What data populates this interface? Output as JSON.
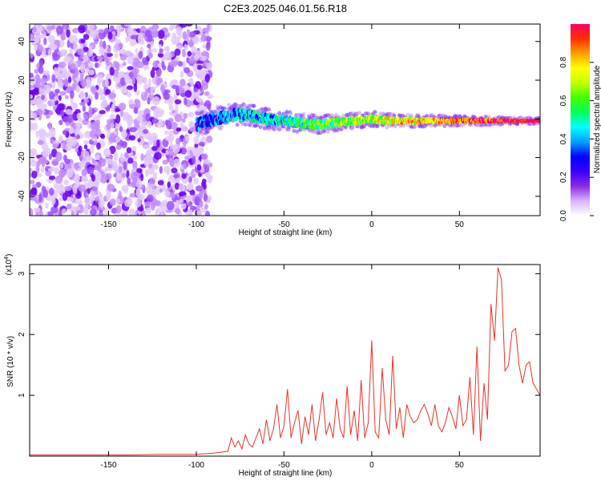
{
  "title": "C2E3.2025.046.01.56.R18",
  "chart_data": [
    {
      "type": "heatmap",
      "xlabel": "Height of straight line (km)",
      "ylabel": "Frequency (Hz)",
      "xlim": [
        -195,
        96
      ],
      "ylim": [
        -50,
        49
      ],
      "xticks": [
        "-150",
        "-100",
        "-50",
        "0",
        "50"
      ],
      "xtick_values": [
        -150,
        -100,
        -50,
        0,
        50
      ],
      "yticks": [
        "40",
        "20",
        "0",
        "-20",
        "-40"
      ],
      "ytick_values": [
        40,
        20,
        0,
        -20,
        -40
      ],
      "grid": false,
      "noise_region_km": [
        -195,
        -92
      ],
      "signal_track": {
        "x": [
          -100,
          -90,
          -80,
          -70,
          -60,
          -50,
          -40,
          -30,
          -20,
          -10,
          0,
          10,
          20,
          30,
          40,
          50,
          60,
          70,
          80,
          90,
          96
        ],
        "y": [
          -3,
          0,
          2,
          2,
          0,
          -1,
          -2,
          -3,
          -2,
          -1,
          0,
          -1,
          -1,
          -1,
          -1,
          -1,
          -1,
          -1,
          -1,
          -1,
          -1
        ]
      },
      "colorbar": {
        "label": "Normalized spectral amplitude",
        "range": [
          0.0,
          1.0
        ],
        "ticks": [
          "0.0",
          "0.2",
          "0.4",
          "0.6",
          "0.8"
        ],
        "tick_values": [
          0.0,
          0.2,
          0.4,
          0.6,
          0.8
        ],
        "colors": [
          "#ffffff",
          "#d9b3ff",
          "#8a2be2",
          "#3a00ff",
          "#0000ff",
          "#00a0ff",
          "#00ffff",
          "#00ff60",
          "#40ff00",
          "#c0ff00",
          "#ffff00",
          "#ffa000",
          "#ff3000",
          "#ff0060"
        ]
      }
    },
    {
      "type": "line",
      "xlabel": "Height of straight line (km)",
      "ylabel": "SNR (10 * v/v)",
      "y_multiplier": "(x10",
      "y_multiplier_exp": "4",
      "y_multiplier_close": ")",
      "xlim": [
        -195,
        96
      ],
      "ylim": [
        0,
        3.15
      ],
      "xticks": [
        "-150",
        "-100",
        "-50",
        "0",
        "50"
      ],
      "xtick_values": [
        -150,
        -100,
        -50,
        0,
        50
      ],
      "yticks": [
        "1",
        "2",
        "3"
      ],
      "ytick_values": [
        1,
        2,
        3
      ],
      "grid": false,
      "color": "#e8312a",
      "x": [
        -195,
        -180,
        -160,
        -140,
        -120,
        -100,
        -90,
        -82,
        -80,
        -78,
        -76,
        -74,
        -72,
        -70,
        -68,
        -66,
        -64,
        -62,
        -60,
        -58,
        -56,
        -54,
        -52,
        -50,
        -48,
        -46,
        -44,
        -42,
        -40,
        -38,
        -36,
        -34,
        -32,
        -30,
        -28,
        -26,
        -24,
        -22,
        -20,
        -18,
        -16,
        -14,
        -12,
        -10,
        -8,
        -6,
        -4,
        -2,
        0,
        2,
        4,
        6,
        8,
        10,
        12,
        14,
        16,
        18,
        20,
        22,
        24,
        26,
        28,
        30,
        32,
        34,
        36,
        38,
        40,
        42,
        44,
        46,
        48,
        50,
        52,
        54,
        56,
        58,
        60,
        62,
        64,
        66,
        68,
        70,
        72,
        74,
        76,
        78,
        80,
        82,
        84,
        86,
        88,
        90,
        92,
        94,
        96
      ],
      "y": [
        0.02,
        0.02,
        0.02,
        0.02,
        0.03,
        0.03,
        0.05,
        0.08,
        0.3,
        0.15,
        0.25,
        0.12,
        0.35,
        0.2,
        0.15,
        0.3,
        0.45,
        0.2,
        0.6,
        0.25,
        0.45,
        0.85,
        0.3,
        0.5,
        1.1,
        0.3,
        0.55,
        0.75,
        0.2,
        0.65,
        0.35,
        0.85,
        0.25,
        0.6,
        1.05,
        0.35,
        0.55,
        0.3,
        0.95,
        0.45,
        0.3,
        1.15,
        0.35,
        0.75,
        0.25,
        1.25,
        0.3,
        0.55,
        1.9,
        0.4,
        0.3,
        1.45,
        0.6,
        0.35,
        1.65,
        0.45,
        0.8,
        0.3,
        0.85,
        0.65,
        0.55,
        0.6,
        0.75,
        0.85,
        0.7,
        0.5,
        0.85,
        0.5,
        0.4,
        0.55,
        0.8,
        0.65,
        0.45,
        1.0,
        0.5,
        0.6,
        1.3,
        0.35,
        1.8,
        0.25,
        1.2,
        0.6,
        2.5,
        1.9,
        3.1,
        2.9,
        1.4,
        1.5,
        2.05,
        2.1,
        1.5,
        1.2,
        1.5,
        1.55,
        1.2,
        1.1,
        1.0
      ]
    }
  ]
}
